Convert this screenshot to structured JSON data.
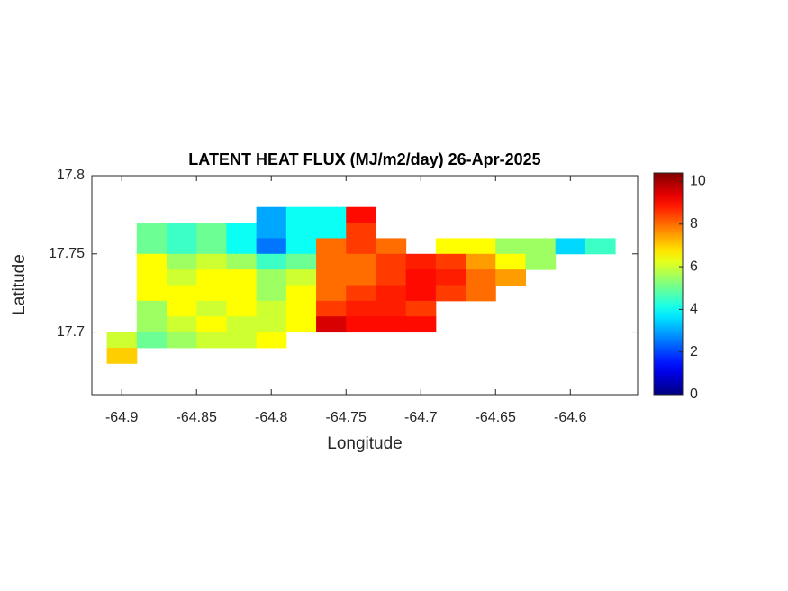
{
  "chart_data": {
    "type": "heatmap",
    "title": "LATENT HEAT FLUX (MJ/m2/day) 26-Apr-2025",
    "xlabel": "Longitude",
    "ylabel": "Latitude",
    "x": [
      -64.9,
      -64.88,
      -64.86,
      -64.84,
      -64.82,
      -64.8,
      -64.78,
      -64.76,
      -64.74,
      -64.72,
      -64.7,
      -64.68,
      -64.66,
      -64.64,
      -64.62,
      -64.6,
      -64.58,
      -64.56
    ],
    "y": [
      17.775,
      17.765,
      17.755,
      17.745,
      17.735,
      17.725,
      17.715,
      17.705,
      17.695,
      17.685
    ],
    "z": [
      [
        null,
        null,
        null,
        null,
        null,
        3,
        4,
        4,
        9,
        null,
        null,
        null,
        null,
        null,
        null,
        null,
        null,
        null
      ],
      [
        null,
        5,
        4.5,
        5,
        4,
        3,
        4,
        4,
        8.5,
        null,
        null,
        null,
        null,
        null,
        null,
        null,
        null,
        null
      ],
      [
        null,
        5,
        4.5,
        5,
        4,
        2.5,
        4,
        8,
        8.5,
        8,
        null,
        6.5,
        6.5,
        5.5,
        5.5,
        3.5,
        4.5,
        null
      ],
      [
        null,
        6.5,
        5.5,
        6,
        5.5,
        4.5,
        5,
        8,
        8,
        8.5,
        8.8,
        8.5,
        7.5,
        6.5,
        5.5,
        null,
        null,
        null
      ],
      [
        null,
        6.5,
        6,
        6.5,
        6.5,
        5.5,
        6,
        8,
        8,
        8.5,
        9,
        8.8,
        8,
        7.5,
        null,
        null,
        null,
        null
      ],
      [
        null,
        6.5,
        6.5,
        6.5,
        6.5,
        5.5,
        6.5,
        8,
        8.5,
        8.8,
        9,
        8.5,
        8,
        null,
        null,
        null,
        null,
        null
      ],
      [
        null,
        5.5,
        6.5,
        6,
        6.5,
        6,
        6.5,
        8.5,
        8.8,
        8.8,
        8.5,
        null,
        null,
        null,
        null,
        null,
        null,
        null
      ],
      [
        null,
        5.5,
        6,
        6.5,
        6,
        6,
        6.5,
        9.5,
        9,
        9,
        9,
        null,
        null,
        null,
        null,
        null,
        null,
        null
      ],
      [
        6,
        5,
        5.5,
        6,
        6,
        6.5,
        null,
        null,
        null,
        null,
        null,
        null,
        null,
        null,
        null,
        null,
        null,
        null
      ],
      [
        7,
        null,
        null,
        null,
        null,
        null,
        null,
        null,
        null,
        null,
        null,
        null,
        null,
        null,
        null,
        null,
        null,
        null
      ]
    ],
    "xlim": [
      -64.92,
      -64.555
    ],
    "ylim": [
      17.66,
      17.8
    ],
    "xticks": [
      -64.9,
      -64.85,
      -64.8,
      -64.75,
      -64.7,
      -64.65,
      -64.6
    ],
    "yticks": [
      17.7,
      17.75,
      17.8
    ],
    "colormap": "jet",
    "clim": [
      0,
      10.4
    ],
    "cticks": [
      0,
      2,
      4,
      6,
      8,
      10
    ]
  }
}
